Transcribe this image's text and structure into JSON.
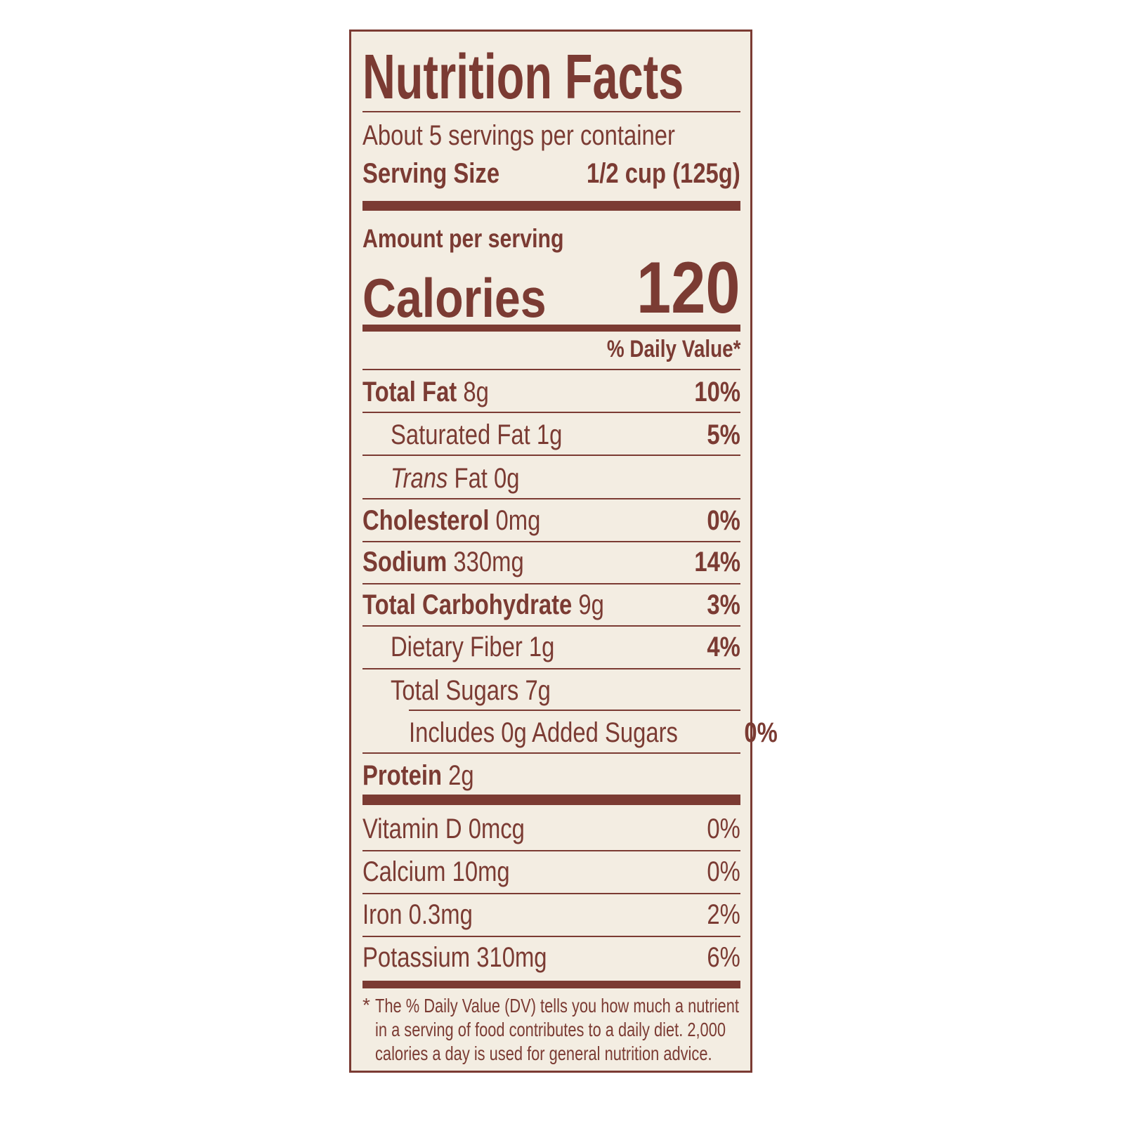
{
  "title": "Nutrition Facts",
  "servings": "About 5 servings per container",
  "serving_size": {
    "label": "Serving Size",
    "value": "1/2 cup (125g)"
  },
  "amount_per_serving": "Amount per serving",
  "calories": {
    "label": "Calories",
    "value": "120"
  },
  "dv_header": "% Daily Value*",
  "nutrients": [
    {
      "name": "Total Fat",
      "amount": "8g",
      "dv": "10%"
    },
    {
      "name": "Saturated Fat",
      "amount": "1g",
      "dv": "5%"
    },
    {
      "name_italic": "Trans",
      "name": "Fat",
      "amount": "0g"
    },
    {
      "name": "Cholesterol",
      "amount": "0mg",
      "dv": "0%"
    },
    {
      "name": "Sodium",
      "amount": "330mg",
      "dv": "14%"
    },
    {
      "name": "Total Carbohydrate",
      "amount": "9g",
      "dv": "3%"
    },
    {
      "name": "Dietary Fiber",
      "amount": "1g",
      "dv": "4%"
    },
    {
      "name": "Total Sugars",
      "amount": "7g"
    },
    {
      "name": "Includes 0g Added Sugars",
      "dv": "0%"
    },
    {
      "name": "Protein",
      "amount": "2g"
    }
  ],
  "vitamins": [
    {
      "name": "Vitamin D",
      "amount": "0mcg",
      "dv": "0%"
    },
    {
      "name": "Calcium",
      "amount": "10mg",
      "dv": "0%"
    },
    {
      "name": "Iron",
      "amount": "0.3mg",
      "dv": "2%"
    },
    {
      "name": "Potassium",
      "amount": "310mg",
      "dv": "6%"
    }
  ],
  "footnote": {
    "marker": "*",
    "lines": [
      "The % Daily Value (DV) tells you how much a nutrient",
      "in a serving of food contributes to a daily diet. 2,000",
      "calories a day is used for general nutrition advice."
    ]
  }
}
